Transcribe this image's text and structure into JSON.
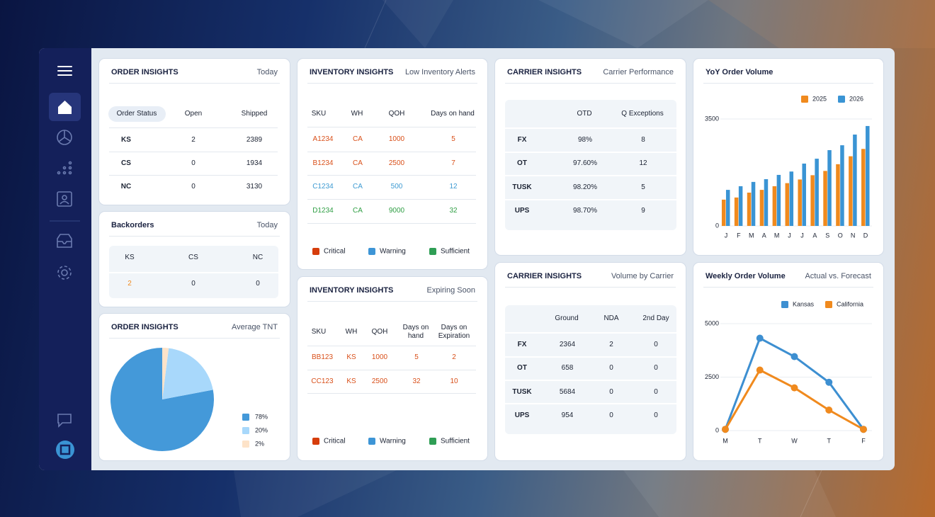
{
  "order_insights": {
    "title": "ORDER INSIGHTS",
    "period": "Today",
    "columns": [
      "Order Status",
      "Open",
      "Shipped"
    ],
    "rows": [
      [
        "KS",
        2,
        2389
      ],
      [
        "CS",
        0,
        1934
      ],
      [
        "NC",
        0,
        3130
      ]
    ]
  },
  "backorders": {
    "title": "Backorders",
    "period": "Today",
    "columns": [
      "KS",
      "CS",
      "NC"
    ],
    "values": [
      2,
      0,
      0
    ],
    "colors": [
      "#f08a1e",
      "#1c2333",
      "#1c2333"
    ]
  },
  "low_inventory": {
    "title": "INVENTORY INSIGHTS",
    "subtitle": "Low Inventory Alerts",
    "columns": [
      "SKU",
      "WH",
      "QOH",
      "Days on hand"
    ],
    "rows": [
      [
        "A1234",
        "CA",
        1000,
        5
      ],
      [
        "B1234",
        "CA",
        2500,
        7
      ],
      [
        "C1234",
        "CA",
        500,
        12
      ],
      [
        "D1234",
        "CA",
        9000,
        32
      ]
    ],
    "row_colors": [
      "#d9501a",
      "#d9501a",
      "#3d9ad2",
      "#2f9e44"
    ],
    "legend": [
      {
        "name": "Critical",
        "color": "#d63d0c"
      },
      {
        "name": "Warning",
        "color": "#3d95d6"
      },
      {
        "name": "Sufficient",
        "color": "#2f9e55"
      }
    ]
  },
  "expiring_inventory": {
    "title": "INVENTORY INSIGHTS",
    "subtitle": "Expiring Soon",
    "columns": [
      "SKU",
      "WH",
      "QOH",
      "Days on hand",
      "Days on Expiration"
    ],
    "rows": [
      [
        "BB123",
        "KS",
        1000,
        5,
        2
      ],
      [
        "CC123",
        "KS",
        2500,
        32,
        10
      ]
    ],
    "row_colors": [
      "#d9501a",
      "#d9501a"
    ],
    "legend": [
      {
        "name": "Critical",
        "color": "#d63d0c"
      },
      {
        "name": "Warning",
        "color": "#3d95d6"
      },
      {
        "name": "Sufficient",
        "color": "#2f9e55"
      }
    ]
  },
  "carrier_performance": {
    "title": "CARRIER INSIGHTS",
    "subtitle": "Carrier Performance",
    "columns": [
      "OTD",
      "Q Exceptions"
    ],
    "rows": [
      [
        "FX",
        "98%",
        8
      ],
      [
        "OT",
        "97.60%",
        12
      ],
      [
        "TUSK",
        "98.20%",
        5
      ],
      [
        "UPS",
        "98.70%",
        9
      ]
    ]
  },
  "carrier_volume": {
    "title": "CARRIER INSIGHTS",
    "subtitle": "Volume by Carrier",
    "columns": [
      "Ground",
      "NDA",
      "2nd Day"
    ],
    "rows": [
      [
        "FX",
        2364,
        2,
        0
      ],
      [
        "OT",
        658,
        0,
        0
      ],
      [
        "TUSK",
        5684,
        0,
        0
      ],
      [
        "UPS",
        954,
        0,
        0
      ]
    ]
  },
  "chart_data": [
    {
      "type": "pie",
      "title": "ORDER INSIGHTS",
      "subtitle": "Average TNT",
      "values": [
        78,
        20,
        2
      ],
      "value_labels": [
        "78%",
        "20%",
        "2%"
      ],
      "colors": [
        "#4499d9",
        "#a8d8fb",
        "#fde3c9"
      ]
    },
    {
      "type": "bar",
      "title": "YoY Order Volume",
      "categories": [
        "J",
        "F",
        "M",
        "A",
        "M",
        "J",
        "J",
        "A",
        "S",
        "O",
        "N",
        "D"
      ],
      "series": [
        {
          "name": "2025",
          "color": "#f08a1e",
          "values": [
            860,
            930,
            1090,
            1180,
            1300,
            1400,
            1520,
            1660,
            1800,
            2020,
            2280,
            2520
          ]
        },
        {
          "name": "2026",
          "color": "#3a94d4",
          "values": [
            1180,
            1300,
            1440,
            1530,
            1670,
            1780,
            2040,
            2200,
            2480,
            2640,
            2990,
            3270
          ]
        }
      ],
      "ylim": [
        0,
        3500
      ],
      "yticks": [
        0,
        3500
      ],
      "grid": true,
      "legend": "top-right"
    },
    {
      "type": "line",
      "title": "Weekly Order Volume",
      "subtitle": "Actual vs. Forecast",
      "categories": [
        "M",
        "T",
        "W",
        "T",
        "F"
      ],
      "series": [
        {
          "name": "Kansas",
          "color": "#3d8fd1",
          "values": [
            60,
            4320,
            3460,
            2260,
            60
          ]
        },
        {
          "name": "California",
          "color": "#f08a1e",
          "values": [
            60,
            2830,
            2000,
            960,
            60
          ]
        }
      ],
      "ylim": [
        0,
        5000
      ],
      "yticks": [
        0,
        2500,
        5000
      ],
      "grid": true,
      "legend": "top-right"
    }
  ]
}
